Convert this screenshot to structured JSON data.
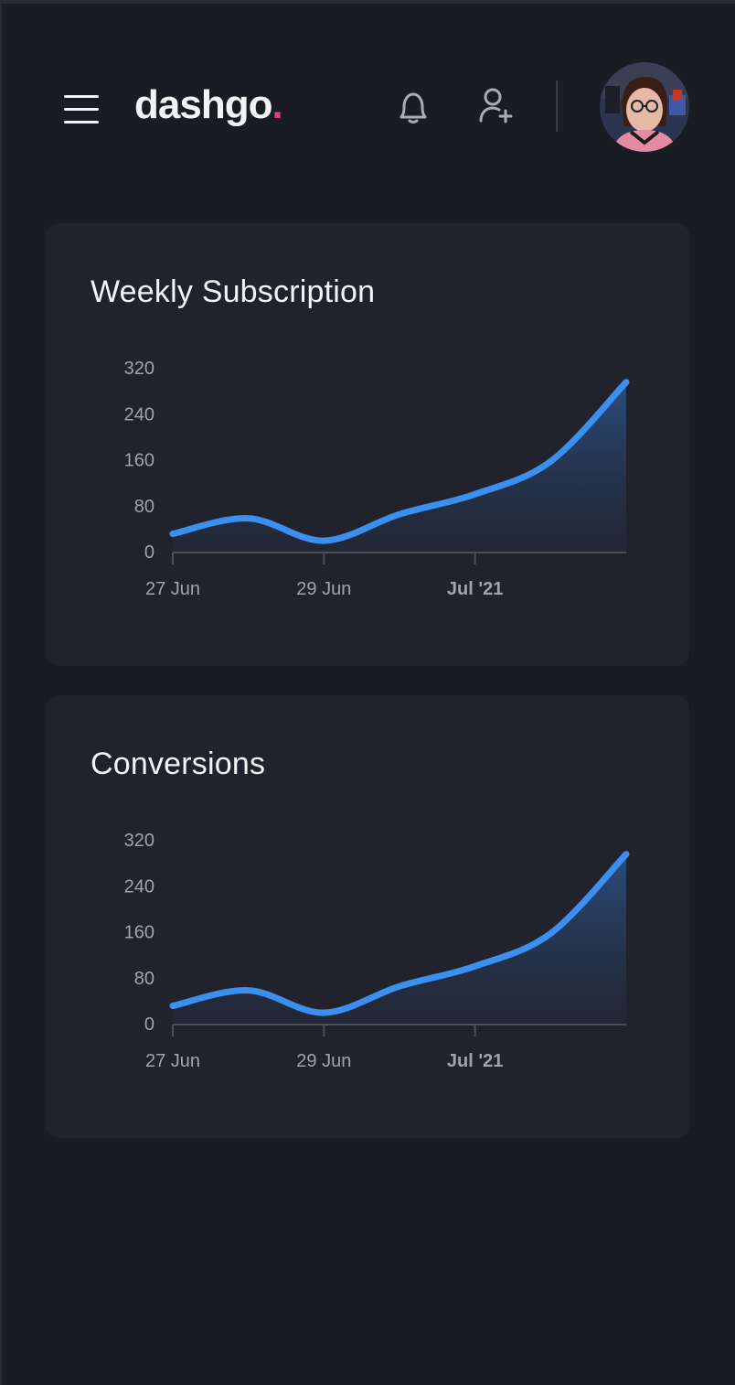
{
  "header": {
    "logo_text": "dashgo",
    "logo_dot": ".",
    "icons": {
      "menu": "hamburger-menu-icon",
      "notifications": "bell-icon",
      "add_user": "user-plus-icon"
    },
    "colors": {
      "background": "#1a1c23",
      "card": "#21222b",
      "accent": "#d53f8c",
      "chart_line": "#3b8ff0"
    }
  },
  "cards": [
    {
      "title": "Weekly Subscription"
    },
    {
      "title": "Conversions"
    }
  ],
  "chart_data": [
    {
      "type": "area",
      "title": "Weekly Subscription",
      "x": [
        "2021-06-27",
        "2021-06-28",
        "2021-06-29",
        "2021-06-30",
        "2021-07-01",
        "2021-07-02",
        "2021-07-03"
      ],
      "series": [
        {
          "values": [
            31,
            58,
            19,
            65,
            100,
            157,
            295
          ]
        }
      ],
      "x_tick_labels": [
        "27 Jun",
        "29 Jun",
        "Jul '21"
      ],
      "y_ticks": [
        "0",
        "80",
        "160",
        "240",
        "320"
      ],
      "ylim": [
        0,
        320
      ],
      "grid": false
    },
    {
      "type": "area",
      "title": "Conversions",
      "x": [
        "2021-06-27",
        "2021-06-28",
        "2021-06-29",
        "2021-06-30",
        "2021-07-01",
        "2021-07-02",
        "2021-07-03"
      ],
      "series": [
        {
          "values": [
            31,
            58,
            19,
            65,
            100,
            157,
            295
          ]
        }
      ],
      "x_tick_labels": [
        "27 Jun",
        "29 Jun",
        "Jul '21"
      ],
      "y_ticks": [
        "0",
        "80",
        "160",
        "240",
        "320"
      ],
      "ylim": [
        0,
        320
      ],
      "grid": false
    }
  ]
}
